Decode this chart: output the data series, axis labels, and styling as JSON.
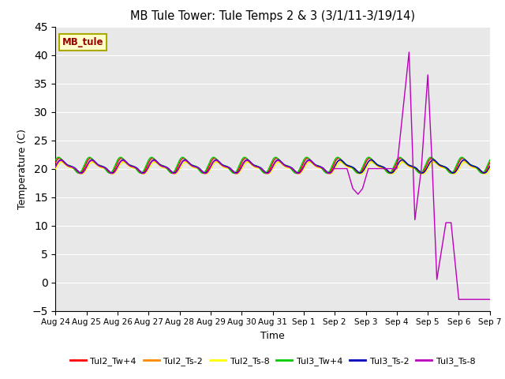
{
  "title": "MB Tule Tower: Tule Temps 2 & 3 (3/1/11-3/19/14)",
  "xlabel": "Time",
  "ylabel": "Temperature (C)",
  "ylim": [
    -5,
    45
  ],
  "yticks": [
    -5,
    0,
    5,
    10,
    15,
    20,
    25,
    30,
    35,
    40,
    45
  ],
  "bg_color": "#e8e8e8",
  "legend_label": "MB_tule",
  "series_colors": {
    "Tul2_Tw+4": "#ff0000",
    "Tul2_Ts-2": "#ff8800",
    "Tul2_Ts-8": "#ffff00",
    "Tul3_Tw+4": "#00cc00",
    "Tul3_Ts-2": "#0000bb",
    "Tul3_Ts-8": "#bb00bb"
  },
  "xtick_labels": [
    "Aug 24",
    "Aug 25",
    "Aug 26",
    "Aug 27",
    "Aug 28",
    "Aug 29",
    "Aug 30",
    "Aug 31",
    "Sep 1",
    "Sep 2",
    "Sep 3",
    "Sep 4",
    "Sep 5",
    "Sep 6",
    "Sep 7"
  ],
  "num_days": 14,
  "base_temp": 20.3,
  "amplitude": 1.0
}
